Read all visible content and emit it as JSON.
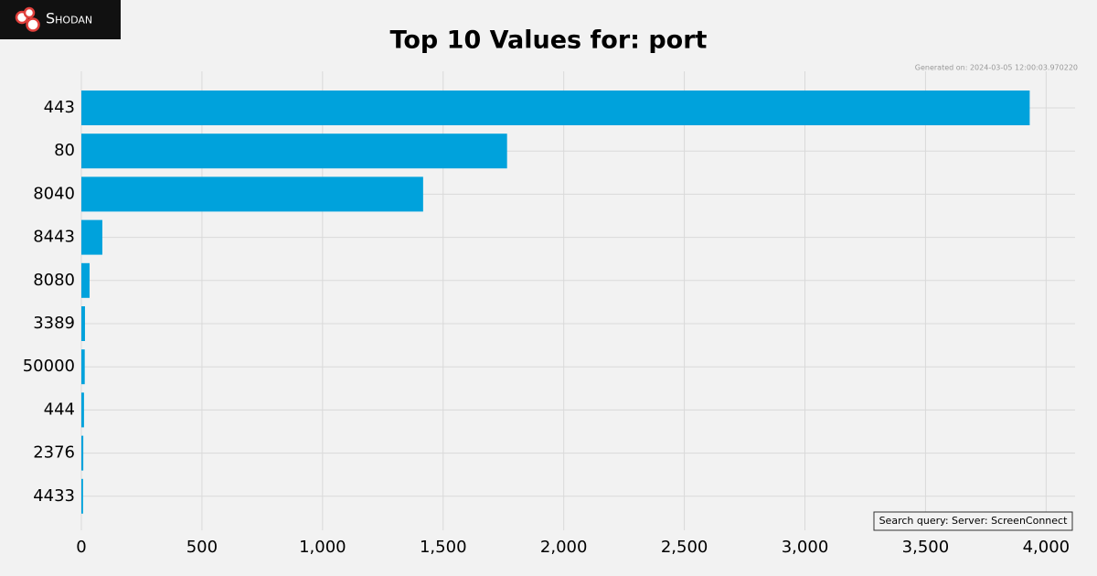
{
  "brand": "Shodan",
  "chart_data": {
    "type": "barh",
    "title": "Top 10 Values for: port",
    "note": "Generated on: 2024-03-05 12:00:03.970220",
    "annotation": "Search query: Server: ScreenConnect",
    "categories": [
      "443",
      "80",
      "8040",
      "8443",
      "8080",
      "3389",
      "50000",
      "444",
      "2376",
      "4433"
    ],
    "values": [
      3932,
      1765,
      1417,
      87,
      34,
      15,
      14,
      11,
      8,
      7
    ],
    "color": "#00a2dc",
    "xlim": [
      0,
      4120
    ],
    "xticks": [
      0,
      500,
      {
        "value": 1000,
        "label": "1,000"
      },
      {
        "value": 1500,
        "label": "1,500"
      },
      {
        "value": 2000,
        "label": "2,000"
      },
      {
        "value": 2500,
        "label": "2,500"
      },
      {
        "value": 3000,
        "label": "3,000"
      },
      {
        "value": 3500,
        "label": "3,500"
      },
      {
        "value": 4000,
        "label": "4,000"
      }
    ],
    "grid": true
  }
}
